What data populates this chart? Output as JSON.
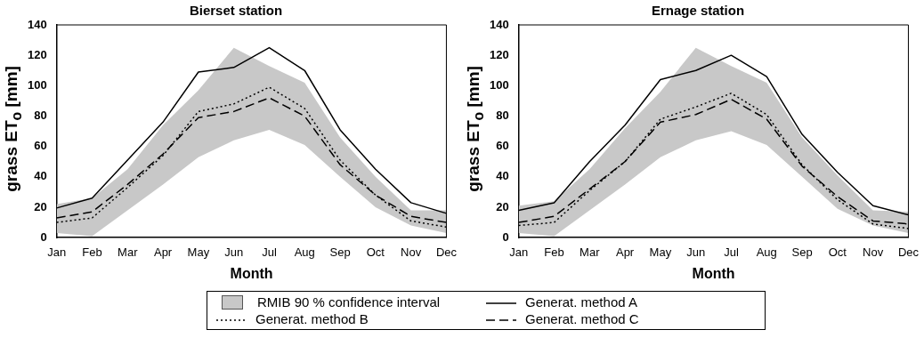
{
  "chart_data": [
    {
      "type": "line",
      "title": "Bierset station",
      "xlabel": "Month",
      "ylabel": "grass ET$_{o}$ [mm]",
      "categories": [
        "Jan",
        "Feb",
        "Mar",
        "Apr",
        "May",
        "Jun",
        "Jul",
        "Aug",
        "Sep",
        "Oct",
        "Nov",
        "Dec"
      ],
      "ylim": [
        0,
        140
      ],
      "yticks": [
        0,
        20,
        40,
        60,
        80,
        100,
        120,
        140
      ],
      "grid": false,
      "legend": "bottom",
      "marker": "none",
      "series": [
        {
          "name": "RMIB 90 % confidence interval",
          "type": "area",
          "color": "#c8c8c8",
          "values": [
            null,
            null,
            null,
            null,
            null,
            null,
            null,
            null,
            null,
            null,
            null,
            null
          ],
          "lower": [
            3,
            1,
            18,
            35,
            53,
            64,
            71,
            61,
            40,
            20,
            8,
            3
          ],
          "upper": [
            22,
            26,
            45,
            74,
            97,
            125,
            113,
            102,
            66,
            40,
            18,
            18
          ]
        },
        {
          "name": "Generat. method A",
          "color": "#000000",
          "line_style": "solid",
          "values": [
            19.5,
            26,
            51,
            76,
            109,
            112,
            125,
            110,
            71,
            45,
            23,
            16
          ]
        },
        {
          "name": "Generat. method B",
          "color": "#000000",
          "line_style": "dotted",
          "values": [
            10,
            13,
            33,
            54,
            83,
            88,
            99,
            85,
            51,
            28,
            11,
            7
          ]
        },
        {
          "name": "Generat. method C",
          "color": "#000000",
          "line_style": "dashed",
          "values": [
            13,
            17,
            35,
            55,
            79,
            83,
            92,
            80,
            48,
            28,
            14,
            10
          ]
        }
      ]
    },
    {
      "type": "line",
      "title": "Ernage station",
      "xlabel": "Month",
      "ylabel": "grass ET$_{o}$ [mm]",
      "categories": [
        "Jan",
        "Feb",
        "Mar",
        "Apr",
        "May",
        "Jun",
        "Jul",
        "Aug",
        "Sep",
        "Oct",
        "Nov",
        "Dec"
      ],
      "ylim": [
        0,
        140
      ],
      "yticks": [
        0,
        20,
        40,
        60,
        80,
        100,
        120,
        140
      ],
      "grid": false,
      "marker": "none",
      "series": [
        {
          "type": "area",
          "color": "#c8c8c8",
          "values": [
            null,
            null,
            null,
            null,
            null,
            null,
            null,
            null,
            null,
            null,
            null,
            null
          ],
          "lower": [
            3,
            1,
            18,
            35,
            53,
            64,
            70,
            61,
            40,
            19,
            8,
            3
          ],
          "upper": [
            21,
            24,
            45,
            72,
            96,
            125,
            113,
            102,
            66,
            41,
            18,
            17
          ]
        },
        {
          "color": "#000000",
          "line_style": "solid",
          "values": [
            18,
            23,
            50,
            74,
            104,
            110,
            120,
            106,
            68,
            43,
            21,
            15
          ]
        },
        {
          "color": "#000000",
          "line_style": "dotted",
          "values": [
            8,
            10,
            31,
            50,
            78,
            86,
            95,
            81,
            48,
            25,
            9,
            6
          ]
        },
        {
          "color": "#000000",
          "line_style": "dashed",
          "values": [
            10,
            14,
            32,
            50,
            76,
            81,
            91,
            78,
            47,
            27,
            11,
            9
          ]
        }
      ]
    }
  ]
}
